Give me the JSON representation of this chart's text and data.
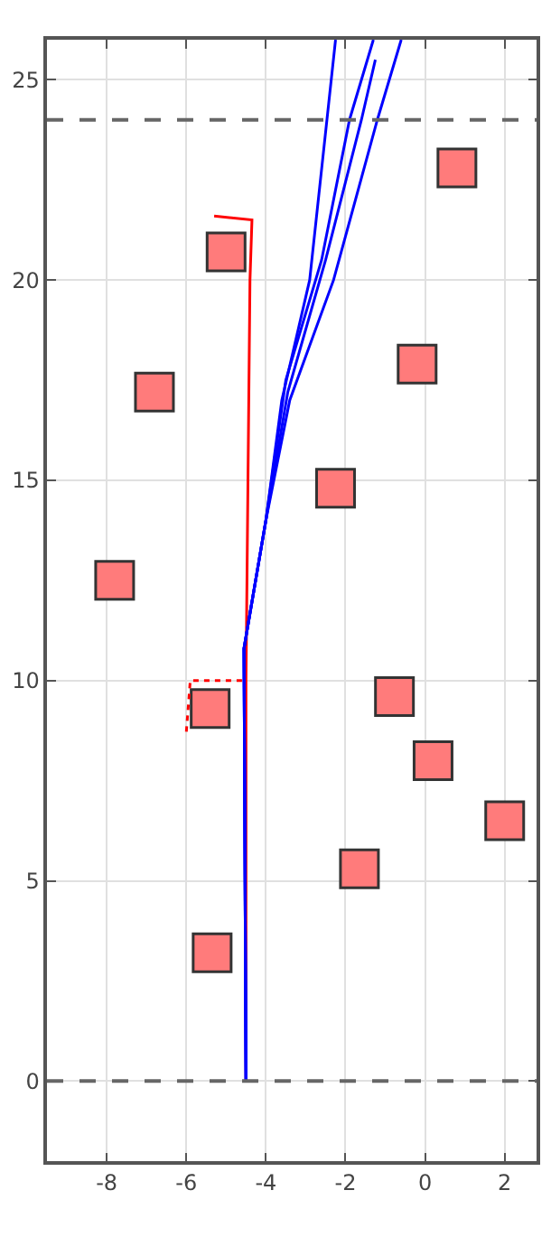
{
  "chart_data": {
    "type": "line",
    "xlim": [
      -9.5,
      2.8
    ],
    "ylim": [
      -2,
      26
    ],
    "xticks": [
      -8,
      -6,
      -4,
      -2,
      0,
      2
    ],
    "yticks": [
      0,
      5,
      10,
      15,
      20,
      25
    ],
    "grid": true,
    "series": [
      {
        "type": "scatter",
        "marker": "square",
        "color": "#ff7b7b",
        "x": [
          0.8,
          -5.0,
          -6.8,
          -0.2,
          -2.25,
          -7.8,
          -0.77,
          -5.4,
          0.2,
          2.0,
          -1.65,
          -5.35
        ],
        "values": [
          22.8,
          20.7,
          17.2,
          17.9,
          14.8,
          12.5,
          9.6,
          9.3,
          8.0,
          6.5,
          5.3,
          3.2
        ]
      },
      {
        "color": "#ff0000",
        "line_style": "solid",
        "x": [
          -4.5,
          -4.5,
          -4.45,
          -4.4,
          -4.35,
          -5.3
        ],
        "values": [
          0,
          10,
          15,
          20,
          21.5,
          21.6
        ]
      },
      {
        "color": "#ff0000",
        "line_style": "dotted",
        "x": [
          -4.6,
          -5.9,
          -6.0
        ],
        "values": [
          10,
          10,
          8.7
        ]
      },
      {
        "color": "#0000ff",
        "line_style": "solid",
        "x": [
          -4.5,
          -4.55,
          -4.0,
          -3.6,
          -2.9,
          -2.25
        ],
        "values": [
          0,
          10.8,
          14,
          17,
          20,
          26
        ]
      },
      {
        "color": "#0000ff",
        "line_style": "solid",
        "x": [
          -4.5,
          -4.55,
          -4.0,
          -3.5,
          -2.6,
          -1.9,
          -1.3
        ],
        "values": [
          0,
          10.8,
          14,
          17.5,
          20.5,
          24,
          26
        ]
      },
      {
        "color": "#0000ff",
        "line_style": "solid",
        "x": [
          -4.5,
          -4.55,
          -4.0,
          -3.45,
          -2.5,
          -1.6,
          -1.25
        ],
        "values": [
          0,
          10.8,
          14,
          17.2,
          20.5,
          24,
          25.5
        ]
      },
      {
        "color": "#0000ff",
        "line_style": "solid",
        "x": [
          -4.5,
          -4.55,
          -4.0,
          -3.4,
          -2.3,
          -1.2,
          -0.6
        ],
        "values": [
          0,
          10.8,
          14,
          17,
          20,
          24,
          26
        ]
      }
    ],
    "ref_lines": [
      {
        "axis": "y",
        "value": 0,
        "color": "#666666",
        "line_style": "dashed"
      },
      {
        "axis": "y",
        "value": 24,
        "color": "#666666",
        "line_style": "dashed"
      }
    ]
  }
}
